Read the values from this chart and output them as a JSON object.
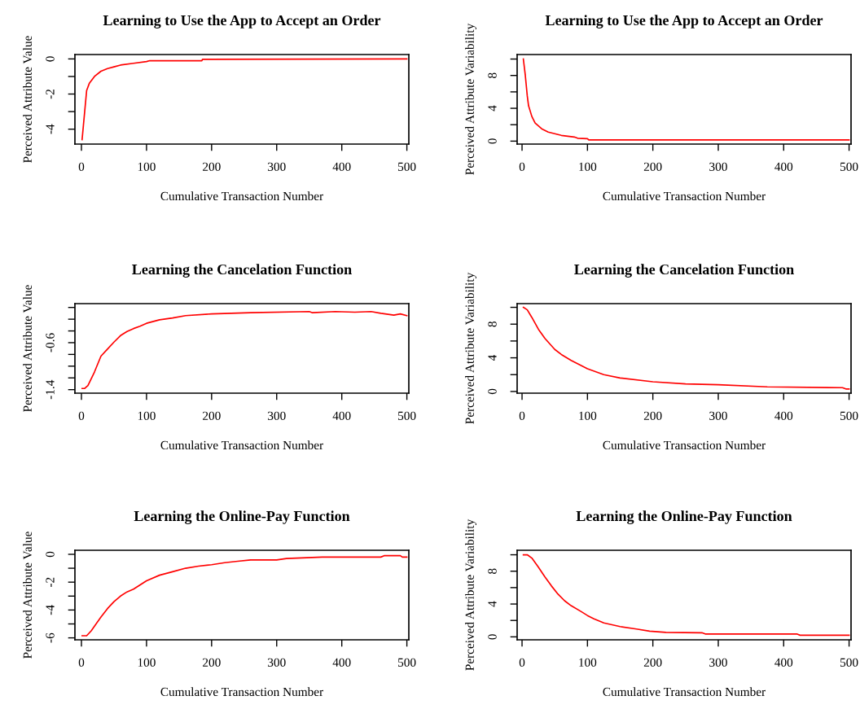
{
  "chart_data": [
    {
      "type": "line",
      "title": "Learning to Use the App to Accept an Order",
      "xlabel": "Cumulative Transaction Number",
      "ylabel": "Perceived Attribute Value",
      "xlim": [
        -10,
        503
      ],
      "ylim": [
        -4.85,
        0.25
      ],
      "xticks": [
        0,
        100,
        200,
        300,
        400,
        500
      ],
      "yticks": [
        -4,
        {
          "value": -3,
          "label": null
        },
        -2,
        {
          "value": -1,
          "label": null
        },
        0
      ],
      "grid": false,
      "series": [
        {
          "color": "#ff0000",
          "x": [
            1,
            3,
            5,
            8,
            12,
            20,
            30,
            40,
            50,
            60,
            80,
            100,
            105,
            185,
            186,
            500
          ],
          "values": [
            -4.6,
            -3.8,
            -3.0,
            -1.8,
            -1.4,
            -1.0,
            -0.7,
            -0.55,
            -0.45,
            -0.35,
            -0.25,
            -0.15,
            -0.1,
            -0.1,
            -0.02,
            0
          ]
        }
      ]
    },
    {
      "type": "line",
      "title": "Learning to Use the App to Accept an Order",
      "xlabel": "Cumulative Transaction Number",
      "ylabel": "Perceived Attribute Variability",
      "xlim": [
        -7.5,
        503
      ],
      "ylim": [
        -0.36,
        10.55
      ],
      "xticks": [
        0,
        100,
        200,
        300,
        400,
        500
      ],
      "yticks": [
        0,
        {
          "value": 2,
          "label": null
        },
        4,
        {
          "value": 6,
          "label": null
        },
        8,
        {
          "value": 10,
          "label": null
        }
      ],
      "grid": false,
      "series": [
        {
          "color": "#ff0000",
          "x": [
            2,
            5,
            8,
            10,
            15,
            20,
            30,
            40,
            50,
            60,
            80,
            85,
            100,
            102,
            500
          ],
          "values": [
            10,
            8,
            5.5,
            4.3,
            3.0,
            2.2,
            1.5,
            1.1,
            0.9,
            0.7,
            0.5,
            0.35,
            0.3,
            0.15,
            0.15
          ]
        }
      ]
    },
    {
      "type": "line",
      "title": "Learning the Cancelation Function",
      "xlabel": "Cumulative Transaction Number",
      "ylabel": "Perceived Attribute Value",
      "xlim": [
        -10,
        503
      ],
      "ylim": [
        -1.46,
        0.065
      ],
      "xticks": [
        0,
        100,
        200,
        300,
        400,
        500
      ],
      "yticks": [
        -1.4,
        {
          "value": -1.2,
          "label": null
        },
        {
          "value": -1.0,
          "label": null
        },
        {
          "value": -0.8,
          "label": null
        },
        -0.6,
        {
          "value": -0.4,
          "label": null
        },
        {
          "value": -0.2,
          "label": null
        },
        {
          "value": 0.0,
          "label": null
        }
      ],
      "grid": false,
      "series": [
        {
          "color": "#ff0000",
          "x": [
            1,
            5,
            10,
            20,
            30,
            40,
            50,
            60,
            70,
            80,
            90,
            100,
            120,
            140,
            160,
            200,
            260,
            350,
            355,
            390,
            420,
            445,
            460,
            480,
            490,
            500
          ],
          "values": [
            -1.38,
            -1.38,
            -1.33,
            -1.1,
            -0.83,
            -0.71,
            -0.59,
            -0.48,
            -0.41,
            -0.36,
            -0.32,
            -0.27,
            -0.21,
            -0.18,
            -0.14,
            -0.11,
            -0.09,
            -0.07,
            -0.09,
            -0.07,
            -0.08,
            -0.07,
            -0.1,
            -0.13,
            -0.11,
            -0.14
          ]
        }
      ]
    },
    {
      "type": "line",
      "title": "Learning the Cancelation Function",
      "xlabel": "Cumulative Transaction Number",
      "ylabel": "Perceived Attribute Variability",
      "xlim": [
        -7.5,
        503
      ],
      "ylim": [
        -0.2,
        10.44
      ],
      "xticks": [
        0,
        100,
        200,
        300,
        400,
        500
      ],
      "yticks": [
        0,
        {
          "value": 2,
          "label": null
        },
        4,
        {
          "value": 6,
          "label": null
        },
        8,
        {
          "value": 10,
          "label": null
        }
      ],
      "grid": false,
      "series": [
        {
          "color": "#ff0000",
          "x": [
            2,
            8,
            15,
            25,
            35,
            50,
            60,
            75,
            100,
            125,
            150,
            200,
            250,
            300,
            375,
            490,
            495,
            500
          ],
          "values": [
            10,
            9.7,
            8.8,
            7.4,
            6.3,
            5.0,
            4.4,
            3.7,
            2.7,
            2.0,
            1.6,
            1.15,
            0.9,
            0.8,
            0.55,
            0.45,
            0.3,
            0.3
          ]
        }
      ]
    },
    {
      "type": "line",
      "title": "Learning the Online-Pay Function",
      "xlabel": "Cumulative Transaction Number",
      "ylabel": "Perceived Attribute Value",
      "xlim": [
        -10,
        503
      ],
      "ylim": [
        -6.14,
        0.29
      ],
      "xticks": [
        0,
        100,
        200,
        300,
        400,
        500
      ],
      "yticks": [
        -6,
        {
          "value": -5,
          "label": null
        },
        -4,
        {
          "value": -3,
          "label": null
        },
        -2,
        {
          "value": -1,
          "label": null
        },
        0
      ],
      "grid": false,
      "series": [
        {
          "color": "#ff0000",
          "x": [
            1,
            8,
            15,
            30,
            40,
            50,
            60,
            70,
            80,
            100,
            120,
            140,
            160,
            180,
            200,
            220,
            240,
            260,
            300,
            315,
            370,
            460,
            465,
            490,
            493,
            500
          ],
          "values": [
            -5.85,
            -5.85,
            -5.5,
            -4.5,
            -3.9,
            -3.4,
            -3.0,
            -2.7,
            -2.5,
            -1.9,
            -1.5,
            -1.25,
            -1.0,
            -0.85,
            -0.75,
            -0.6,
            -0.5,
            -0.4,
            -0.4,
            -0.3,
            -0.2,
            -0.2,
            -0.1,
            -0.1,
            -0.2,
            -0.2
          ]
        }
      ]
    },
    {
      "type": "line",
      "title": "Learning the Online-Pay Function",
      "xlabel": "Cumulative Transaction Number",
      "ylabel": "Perceived Attribute Variability",
      "xlim": [
        -7.5,
        503
      ],
      "ylim": [
        -0.36,
        10.55
      ],
      "xticks": [
        0,
        100,
        200,
        300,
        400,
        500
      ],
      "yticks": [
        0,
        {
          "value": 2,
          "label": null
        },
        4,
        {
          "value": 6,
          "label": null
        },
        8,
        {
          "value": 10,
          "label": null
        }
      ],
      "grid": false,
      "series": [
        {
          "color": "#ff0000",
          "x": [
            2,
            8,
            15,
            25,
            35,
            45,
            55,
            65,
            75,
            90,
            100,
            110,
            125,
            150,
            175,
            195,
            220,
            275,
            280,
            420,
            425,
            500
          ],
          "values": [
            10,
            10,
            9.6,
            8.5,
            7.3,
            6.2,
            5.2,
            4.4,
            3.8,
            3.1,
            2.6,
            2.2,
            1.7,
            1.25,
            0.95,
            0.7,
            0.55,
            0.5,
            0.35,
            0.35,
            0.2,
            0.2
          ]
        }
      ]
    }
  ]
}
